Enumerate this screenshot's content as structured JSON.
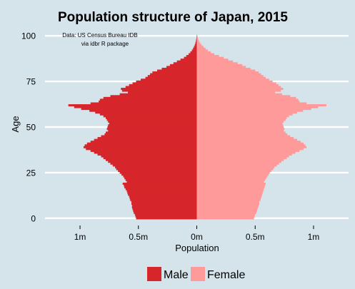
{
  "chart_data": {
    "type": "bar",
    "orientation": "horizontal",
    "title": "Population structure of Japan, 2015",
    "annotation": [
      "Data: US Census Bureau IDB",
      "via idbr R package"
    ],
    "xlabel": "Population",
    "ylabel": "Age",
    "xlim": [
      -1300000,
      1300000
    ],
    "ylim": [
      -4,
      104
    ],
    "x_ticks": [
      {
        "value": -1000000,
        "label": "1m"
      },
      {
        "value": -500000,
        "label": "0.5m"
      },
      {
        "value": 0,
        "label": "0m"
      },
      {
        "value": 500000,
        "label": "0.5m"
      },
      {
        "value": 1000000,
        "label": "1m"
      }
    ],
    "y_ticks": [
      0,
      25,
      50,
      75,
      100
    ],
    "grid": "horizontal",
    "legend_position": "bottom",
    "colors": {
      "background": "#d5e4eb",
      "male": "#d7262b",
      "female": "#ff9a9a",
      "grid": "#ffffff"
    },
    "ages": [
      0,
      1,
      2,
      3,
      4,
      5,
      6,
      7,
      8,
      9,
      10,
      11,
      12,
      13,
      14,
      15,
      16,
      17,
      18,
      19,
      20,
      21,
      22,
      23,
      24,
      25,
      26,
      27,
      28,
      29,
      30,
      31,
      32,
      33,
      34,
      35,
      36,
      37,
      38,
      39,
      40,
      41,
      42,
      43,
      44,
      45,
      46,
      47,
      48,
      49,
      50,
      51,
      52,
      53,
      54,
      55,
      56,
      57,
      58,
      59,
      60,
      61,
      62,
      63,
      64,
      65,
      66,
      67,
      68,
      69,
      70,
      71,
      72,
      73,
      74,
      75,
      76,
      77,
      78,
      79,
      80,
      81,
      82,
      83,
      84,
      85,
      86,
      87,
      88,
      89,
      90,
      91,
      92,
      93,
      94,
      95,
      96,
      97,
      98,
      99,
      100
    ],
    "series": [
      {
        "name": "Male",
        "values": [
          520000,
          525000,
          530000,
          540000,
          545000,
          550000,
          555000,
          555000,
          560000,
          560000,
          570000,
          575000,
          580000,
          590000,
          595000,
          600000,
          610000,
          620000,
          625000,
          635000,
          600000,
          610000,
          620000,
          630000,
          645000,
          660000,
          675000,
          690000,
          700000,
          720000,
          740000,
          760000,
          780000,
          800000,
          820000,
          850000,
          880000,
          910000,
          950000,
          970000,
          960000,
          940000,
          910000,
          880000,
          850000,
          820000,
          790000,
          780000,
          760000,
          770000,
          765000,
          760000,
          750000,
          760000,
          770000,
          780000,
          800000,
          830000,
          870000,
          920000,
          990000,
          1050000,
          1100000,
          910000,
          840000,
          830000,
          800000,
          740000,
          660000,
          590000,
          640000,
          650000,
          610000,
          580000,
          550000,
          520000,
          480000,
          440000,
          420000,
          400000,
          380000,
          340000,
          300000,
          260000,
          230000,
          200000,
          170000,
          140000,
          110000,
          90000,
          70000,
          55000,
          42000,
          32000,
          24000,
          17000,
          12000,
          8000,
          5000,
          3000,
          2000
        ]
      },
      {
        "name": "Female",
        "values": [
          490000,
          495000,
          500000,
          510000,
          515000,
          520000,
          525000,
          530000,
          535000,
          535000,
          545000,
          550000,
          555000,
          560000,
          565000,
          570000,
          575000,
          580000,
          585000,
          590000,
          575000,
          585000,
          595000,
          605000,
          615000,
          625000,
          640000,
          655000,
          665000,
          685000,
          705000,
          725000,
          745000,
          770000,
          790000,
          815000,
          845000,
          880000,
          915000,
          940000,
          930000,
          915000,
          890000,
          860000,
          830000,
          800000,
          775000,
          760000,
          745000,
          750000,
          745000,
          740000,
          735000,
          745000,
          760000,
          770000,
          790000,
          820000,
          860000,
          910000,
          980000,
          1040000,
          1110000,
          940000,
          880000,
          870000,
          850000,
          800000,
          730000,
          670000,
          720000,
          740000,
          720000,
          700000,
          680000,
          650000,
          620000,
          590000,
          570000,
          550000,
          530000,
          500000,
          460000,
          420000,
          390000,
          350000,
          310000,
          270000,
          230000,
          190000,
          150000,
          120000,
          95000,
          75000,
          58000,
          42000,
          30000,
          20000,
          13000,
          8000,
          5000
        ]
      }
    ]
  }
}
